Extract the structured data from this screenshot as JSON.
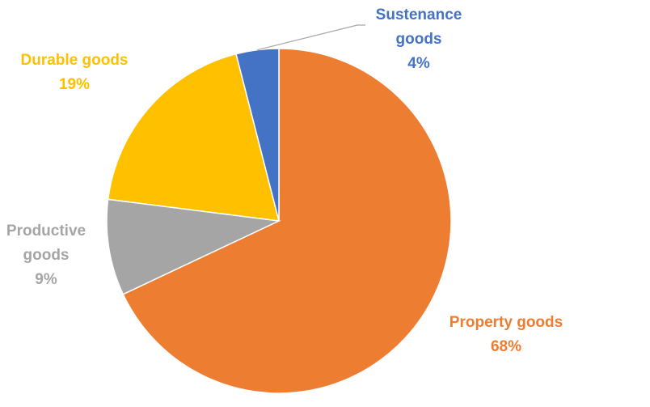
{
  "chart_data": {
    "type": "pie",
    "title": "",
    "slices": [
      {
        "label": "Property goods",
        "value": 68,
        "percent_label": "68%",
        "color": "#ED7D31"
      },
      {
        "label": "Productive goods",
        "value": 9,
        "percent_label": "9%",
        "color": "#A5A5A5"
      },
      {
        "label": "Durable goods",
        "value": 19,
        "percent_label": "19%",
        "color": "#FFC000"
      },
      {
        "label": "Sustenance goods",
        "value": 4,
        "percent_label": "4%",
        "color": "#4472C4"
      }
    ],
    "legend": "none",
    "data_labels": "outside",
    "start_angle_deg": 0,
    "direction": "clockwise"
  }
}
